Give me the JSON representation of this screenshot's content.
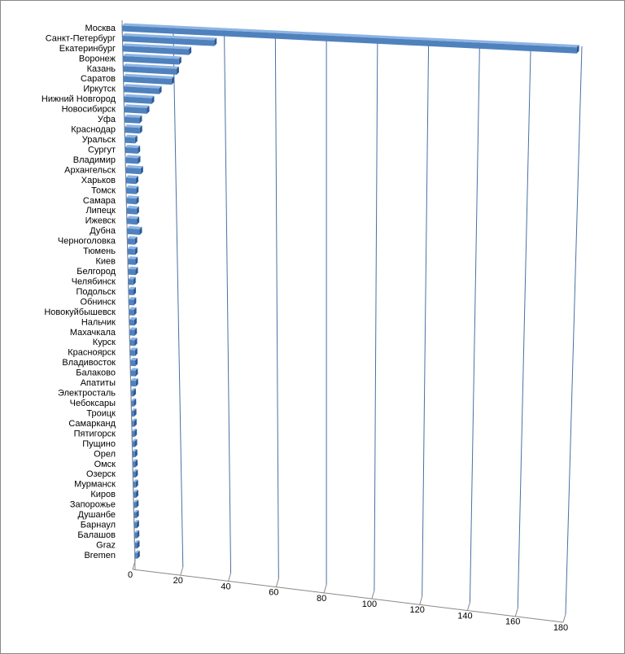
{
  "chart_data": {
    "type": "bar",
    "orientation": "horizontal",
    "color": "#4f81bd",
    "grid": true,
    "categories": [
      "Москва",
      "Санкт-Петербург",
      "Екатеринбург",
      "Воронеж",
      "Казань",
      "Саратов",
      "Иркутск",
      "Нижний Новгород",
      "Новосибирск",
      "Уфа",
      "Краснодар",
      "Уральск",
      "Сургут",
      "Владимир",
      "Архангельск",
      "Харьков",
      "Томск",
      "Самара",
      "Липецк",
      "Ижевск",
      "Дубна",
      "Черноголовка",
      "Тюмень",
      "Киев",
      "Белгород",
      "Челябинск",
      "Подольск",
      "Обнинск",
      "Новокуйбышевск",
      "Нальчик",
      "Махачкала",
      "Курск",
      "Красноярск",
      "Владивосток",
      "Балаково",
      "Апатиты",
      "Электросталь",
      "Чебоксары",
      "Троицк",
      "Самарканд",
      "Пятигорск",
      "Пущино",
      "Орел",
      "Омск",
      "Озерск",
      "Мурманск",
      "Киров",
      "Запорожье",
      "Душанбе",
      "Барнаул",
      "Балашов",
      "Graz",
      "Bremen"
    ],
    "values": [
      178,
      36,
      26,
      22,
      21,
      19,
      14,
      11,
      9,
      6,
      6,
      4,
      5,
      5,
      6,
      4,
      4,
      4,
      4,
      4,
      5,
      3,
      3,
      3,
      3,
      2,
      2,
      2,
      2,
      2,
      2,
      2,
      2,
      2,
      2,
      2,
      1,
      1,
      1,
      1,
      1,
      1,
      1,
      1,
      1,
      1,
      1,
      1,
      1,
      1,
      1,
      1,
      1
    ],
    "xlim": [
      0,
      180
    ],
    "xticks": [
      0,
      20,
      40,
      60,
      80,
      100,
      120,
      140,
      160,
      180
    ]
  }
}
